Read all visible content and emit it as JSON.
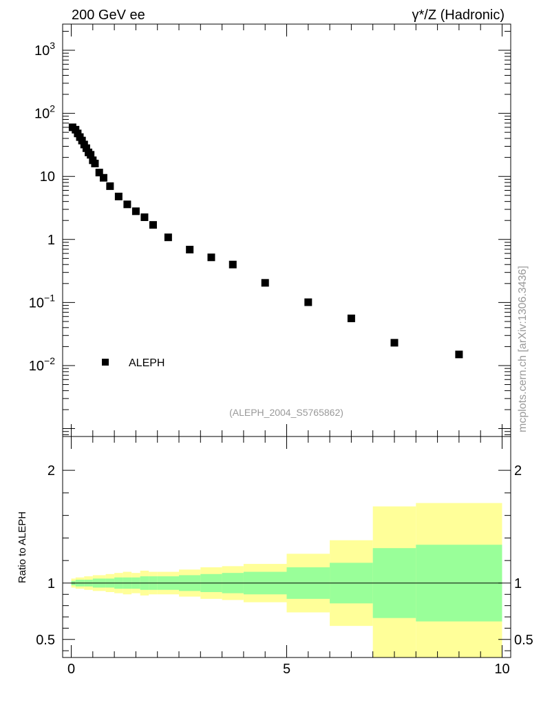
{
  "header": {
    "left": "200 GeV ee",
    "right": "γ*/Z (Hadronic)"
  },
  "watermark": "mcplots.cern.ch [arXiv:1306.3436]",
  "analysis_label": "(ALEPH_2004_S5765862)",
  "colors": {
    "data_marker": "#000000",
    "band_inner": "#99ff99",
    "band_outer": "#ffff99",
    "ref_line": "#000000"
  },
  "chart_data": [
    {
      "type": "scatter",
      "yscale": "log",
      "xlim": [
        -0.2,
        10.2
      ],
      "ylim": [
        0.00075,
        2600
      ],
      "y_ticks": [
        {
          "value": 1000,
          "label": "10",
          "exp": "3"
        },
        {
          "value": 100,
          "label": "10",
          "exp": "2"
        },
        {
          "value": 10,
          "label": "10",
          "exp": ""
        },
        {
          "value": 1,
          "label": "1",
          "exp": ""
        },
        {
          "value": 0.1,
          "label": "10",
          "exp": "−1"
        },
        {
          "value": 0.01,
          "label": "10",
          "exp": "−2"
        }
      ],
      "legend": {
        "label": "ALEPH",
        "position": "bottom-left"
      },
      "series": [
        {
          "name": "ALEPH",
          "x": [
            0.03,
            0.1,
            0.15,
            0.2,
            0.25,
            0.3,
            0.35,
            0.4,
            0.45,
            0.5,
            0.55,
            0.65,
            0.75,
            0.9,
            1.1,
            1.3,
            1.5,
            1.7,
            1.9,
            2.25,
            2.75,
            3.25,
            3.75,
            4.5,
            5.5,
            6.5,
            7.5,
            9.0
          ],
          "y": [
            60,
            55,
            48,
            42,
            37,
            32,
            28,
            24,
            22,
            18,
            16,
            11.5,
            9.5,
            7.0,
            4.8,
            3.6,
            2.8,
            2.25,
            1.7,
            1.08,
            0.69,
            0.52,
            0.4,
            0.205,
            0.101,
            0.056,
            0.023,
            0.015
          ]
        }
      ]
    },
    {
      "type": "area",
      "ylabel": "Ratio to ALEPH",
      "xlim": [
        -0.2,
        10.2
      ],
      "ylim": [
        0.34,
        2.3
      ],
      "x_ticks": [
        0,
        5,
        10
      ],
      "y_ticks": [
        0.5,
        1,
        2
      ],
      "reference_line": 1,
      "bands": [
        {
          "x_lo": 0.0,
          "x_hi": 0.1,
          "inner": [
            0.98,
            1.02
          ],
          "outer": [
            0.96,
            1.04
          ]
        },
        {
          "x_lo": 0.1,
          "x_hi": 0.3,
          "inner": [
            0.97,
            1.03
          ],
          "outer": [
            0.95,
            1.05
          ]
        },
        {
          "x_lo": 0.3,
          "x_hi": 0.5,
          "inner": [
            0.97,
            1.03
          ],
          "outer": [
            0.94,
            1.06
          ]
        },
        {
          "x_lo": 0.5,
          "x_hi": 0.8,
          "inner": [
            0.96,
            1.04
          ],
          "outer": [
            0.93,
            1.07
          ]
        },
        {
          "x_lo": 0.8,
          "x_hi": 1.0,
          "inner": [
            0.96,
            1.04
          ],
          "outer": [
            0.92,
            1.08
          ]
        },
        {
          "x_lo": 1.0,
          "x_hi": 1.2,
          "inner": [
            0.95,
            1.05
          ],
          "outer": [
            0.91,
            1.09
          ]
        },
        {
          "x_lo": 1.2,
          "x_hi": 1.4,
          "inner": [
            0.95,
            1.05
          ],
          "outer": [
            0.9,
            1.1
          ]
        },
        {
          "x_lo": 1.4,
          "x_hi": 1.6,
          "inner": [
            0.95,
            1.05
          ],
          "outer": [
            0.91,
            1.09
          ]
        },
        {
          "x_lo": 1.6,
          "x_hi": 1.8,
          "inner": [
            0.94,
            1.06
          ],
          "outer": [
            0.89,
            1.11
          ]
        },
        {
          "x_lo": 1.8,
          "x_hi": 2.0,
          "inner": [
            0.94,
            1.06
          ],
          "outer": [
            0.9,
            1.1
          ]
        },
        {
          "x_lo": 2.0,
          "x_hi": 2.5,
          "inner": [
            0.94,
            1.06
          ],
          "outer": [
            0.9,
            1.1
          ]
        },
        {
          "x_lo": 2.5,
          "x_hi": 3.0,
          "inner": [
            0.93,
            1.07
          ],
          "outer": [
            0.88,
            1.12
          ]
        },
        {
          "x_lo": 3.0,
          "x_hi": 3.5,
          "inner": [
            0.92,
            1.08
          ],
          "outer": [
            0.86,
            1.14
          ]
        },
        {
          "x_lo": 3.5,
          "x_hi": 4.0,
          "inner": [
            0.91,
            1.09
          ],
          "outer": [
            0.85,
            1.15
          ]
        },
        {
          "x_lo": 4.0,
          "x_hi": 5.0,
          "inner": [
            0.9,
            1.1
          ],
          "outer": [
            0.83,
            1.17
          ]
        },
        {
          "x_lo": 5.0,
          "x_hi": 6.0,
          "inner": [
            0.86,
            1.14
          ],
          "outer": [
            0.74,
            1.26
          ]
        },
        {
          "x_lo": 6.0,
          "x_hi": 7.0,
          "inner": [
            0.82,
            1.18
          ],
          "outer": [
            0.62,
            1.38
          ]
        },
        {
          "x_lo": 7.0,
          "x_hi": 8.0,
          "inner": [
            0.69,
            1.31
          ],
          "outer": [
            0.34,
            1.68
          ]
        },
        {
          "x_lo": 8.0,
          "x_hi": 10.0,
          "inner": [
            0.66,
            1.34
          ],
          "outer": [
            0.34,
            1.71
          ]
        }
      ]
    }
  ]
}
